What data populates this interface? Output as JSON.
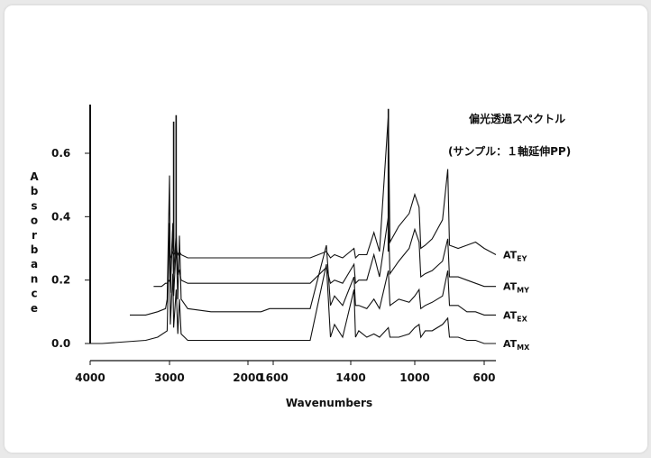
{
  "chart_data": {
    "type": "line",
    "title": "偏光透過スペクトル",
    "subtitle": "(サンプル：１軸延伸PP)",
    "xlabel": "Wavenumbers",
    "ylabel": "Absorbance",
    "x_ticks": [
      "4000",
      "3000",
      "2000",
      "1600",
      "1400",
      "1000",
      "600"
    ],
    "y_ticks": [
      "0.0",
      "0.2",
      "0.4",
      "0.6"
    ],
    "ylim": [
      0,
      0.8
    ],
    "grid": false,
    "series": [
      {
        "name": "ATMX",
        "label_main": "AT",
        "label_sub": "MX",
        "offset": 0.0,
        "points": [
          [
            4000,
            0
          ],
          [
            3850,
            0
          ],
          [
            3300,
            0.01
          ],
          [
            3150,
            0.02
          ],
          [
            3030,
            0.04
          ],
          [
            3000,
            0.38
          ],
          [
            2990,
            0.06
          ],
          [
            2960,
            0.22
          ],
          [
            2950,
            0.05
          ],
          [
            2920,
            0.17
          ],
          [
            2900,
            0.03
          ],
          [
            2880,
            0.14
          ],
          [
            2860,
            0.03
          ],
          [
            2780,
            0.01
          ],
          [
            2500,
            0.01
          ],
          [
            2200,
            0.01
          ],
          [
            2000,
            0.01
          ],
          [
            1800,
            0.01
          ],
          [
            1600,
            0.01
          ],
          [
            1500,
            0.01
          ],
          [
            1460,
            0.25
          ],
          [
            1450,
            0.02
          ],
          [
            1440,
            0.06
          ],
          [
            1420,
            0.02
          ],
          [
            1380,
            0.17
          ],
          [
            1370,
            0.02
          ],
          [
            1350,
            0.04
          ],
          [
            1300,
            0.02
          ],
          [
            1255,
            0.03
          ],
          [
            1220,
            0.02
          ],
          [
            1165,
            0.05
          ],
          [
            1155,
            0.02
          ],
          [
            1100,
            0.02
          ],
          [
            1035,
            0.03
          ],
          [
            1000,
            0.05
          ],
          [
            975,
            0.06
          ],
          [
            965,
            0.02
          ],
          [
            940,
            0.04
          ],
          [
            900,
            0.04
          ],
          [
            840,
            0.06
          ],
          [
            810,
            0.08
          ],
          [
            800,
            0.02
          ],
          [
            750,
            0.02
          ],
          [
            700,
            0.01
          ],
          [
            650,
            0.01
          ],
          [
            600,
            0.0
          ],
          [
            530,
            0.0
          ]
        ]
      },
      {
        "name": "ATEX",
        "label_main": "AT",
        "label_sub": "EX",
        "offset": 0.09,
        "points": [
          [
            3500,
            0
          ],
          [
            3300,
            0
          ],
          [
            3150,
            0.01
          ],
          [
            3050,
            0.02
          ],
          [
            3030,
            0.05
          ],
          [
            3000,
            0.44
          ],
          [
            2990,
            0.07
          ],
          [
            2960,
            0.28
          ],
          [
            2950,
            0.06
          ],
          [
            2920,
            0.22
          ],
          [
            2900,
            0.05
          ],
          [
            2880,
            0.25
          ],
          [
            2860,
            0.05
          ],
          [
            2780,
            0.02
          ],
          [
            2500,
            0.01
          ],
          [
            2200,
            0.01
          ],
          [
            2000,
            0.01
          ],
          [
            1800,
            0.01
          ],
          [
            1600,
            0.02
          ],
          [
            1500,
            0.02
          ],
          [
            1460,
            0.22
          ],
          [
            1450,
            0.03
          ],
          [
            1440,
            0.06
          ],
          [
            1420,
            0.03
          ],
          [
            1380,
            0.12
          ],
          [
            1370,
            0.03
          ],
          [
            1350,
            0.03
          ],
          [
            1300,
            0.02
          ],
          [
            1255,
            0.05
          ],
          [
            1220,
            0.02
          ],
          [
            1165,
            0.14
          ],
          [
            1155,
            0.03
          ],
          [
            1100,
            0.05
          ],
          [
            1035,
            0.04
          ],
          [
            1000,
            0.06
          ],
          [
            975,
            0.08
          ],
          [
            965,
            0.02
          ],
          [
            940,
            0.03
          ],
          [
            900,
            0.04
          ],
          [
            840,
            0.06
          ],
          [
            810,
            0.14
          ],
          [
            800,
            0.03
          ],
          [
            750,
            0.03
          ],
          [
            700,
            0.01
          ],
          [
            650,
            0.01
          ],
          [
            600,
            0.0
          ],
          [
            530,
            0.0
          ]
        ]
      },
      {
        "name": "ATMY",
        "label_main": "AT",
        "label_sub": "MY",
        "offset": 0.18,
        "points": [
          [
            3200,
            0
          ],
          [
            3100,
            0
          ],
          [
            3050,
            0.01
          ],
          [
            3030,
            0.01
          ],
          [
            3000,
            0.02
          ],
          [
            2990,
            0.01
          ],
          [
            2960,
            0.2
          ],
          [
            2950,
            0.04
          ],
          [
            2920,
            0.17
          ],
          [
            2900,
            0.04
          ],
          [
            2880,
            0.05
          ],
          [
            2860,
            0.02
          ],
          [
            2780,
            0.01
          ],
          [
            2500,
            0.01
          ],
          [
            2200,
            0.01
          ],
          [
            2000,
            0.01
          ],
          [
            1800,
            0.01
          ],
          [
            1600,
            0.01
          ],
          [
            1500,
            0.01
          ],
          [
            1460,
            0.06
          ],
          [
            1450,
            0.01
          ],
          [
            1440,
            0.02
          ],
          [
            1420,
            0.01
          ],
          [
            1380,
            0.07
          ],
          [
            1370,
            0.01
          ],
          [
            1350,
            0.02
          ],
          [
            1300,
            0.02
          ],
          [
            1255,
            0.1
          ],
          [
            1220,
            0.03
          ],
          [
            1165,
            0.22
          ],
          [
            1155,
            0.04
          ],
          [
            1100,
            0.08
          ],
          [
            1035,
            0.12
          ],
          [
            1000,
            0.18
          ],
          [
            975,
            0.14
          ],
          [
            965,
            0.03
          ],
          [
            940,
            0.04
          ],
          [
            900,
            0.05
          ],
          [
            840,
            0.08
          ],
          [
            810,
            0.15
          ],
          [
            800,
            0.03
          ],
          [
            750,
            0.03
          ],
          [
            700,
            0.02
          ],
          [
            650,
            0.01
          ],
          [
            600,
            0.0
          ],
          [
            530,
            0.0
          ]
        ]
      },
      {
        "name": "ATEY",
        "label_main": "AT",
        "label_sub": "EY",
        "offset": 0.27,
        "points": [
          [
            3000,
            0
          ],
          [
            2990,
            0
          ],
          [
            2960,
            0.02
          ],
          [
            2950,
            0.01
          ],
          [
            2920,
            0.03
          ],
          [
            2900,
            0.01
          ],
          [
            2880,
            0.02
          ],
          [
            2860,
            0.01
          ],
          [
            2780,
            0.0
          ],
          [
            2500,
            0.0
          ],
          [
            2200,
            0.0
          ],
          [
            2000,
            0.0
          ],
          [
            1800,
            0.0
          ],
          [
            1600,
            0.0
          ],
          [
            1500,
            0.0
          ],
          [
            1460,
            0.02
          ],
          [
            1450,
            0.0
          ],
          [
            1440,
            0.01
          ],
          [
            1420,
            0.0
          ],
          [
            1380,
            0.03
          ],
          [
            1370,
            0.0
          ],
          [
            1350,
            0.01
          ],
          [
            1300,
            0.01
          ],
          [
            1255,
            0.08
          ],
          [
            1220,
            0.02
          ],
          [
            1165,
            0.45
          ],
          [
            1155,
            0.05
          ],
          [
            1100,
            0.1
          ],
          [
            1035,
            0.14
          ],
          [
            1000,
            0.2
          ],
          [
            975,
            0.16
          ],
          [
            965,
            0.03
          ],
          [
            940,
            0.04
          ],
          [
            900,
            0.06
          ],
          [
            840,
            0.12
          ],
          [
            810,
            0.28
          ],
          [
            800,
            0.04
          ],
          [
            750,
            0.03
          ],
          [
            700,
            0.04
          ],
          [
            650,
            0.05
          ],
          [
            600,
            0.03
          ],
          [
            530,
            0.01
          ]
        ]
      }
    ],
    "annotation_peaks": [
      {
        "x": 2950,
        "y": 0.7
      },
      {
        "x": 2920,
        "y": 0.72
      },
      {
        "x": 1165,
        "y": 0.74
      }
    ]
  }
}
